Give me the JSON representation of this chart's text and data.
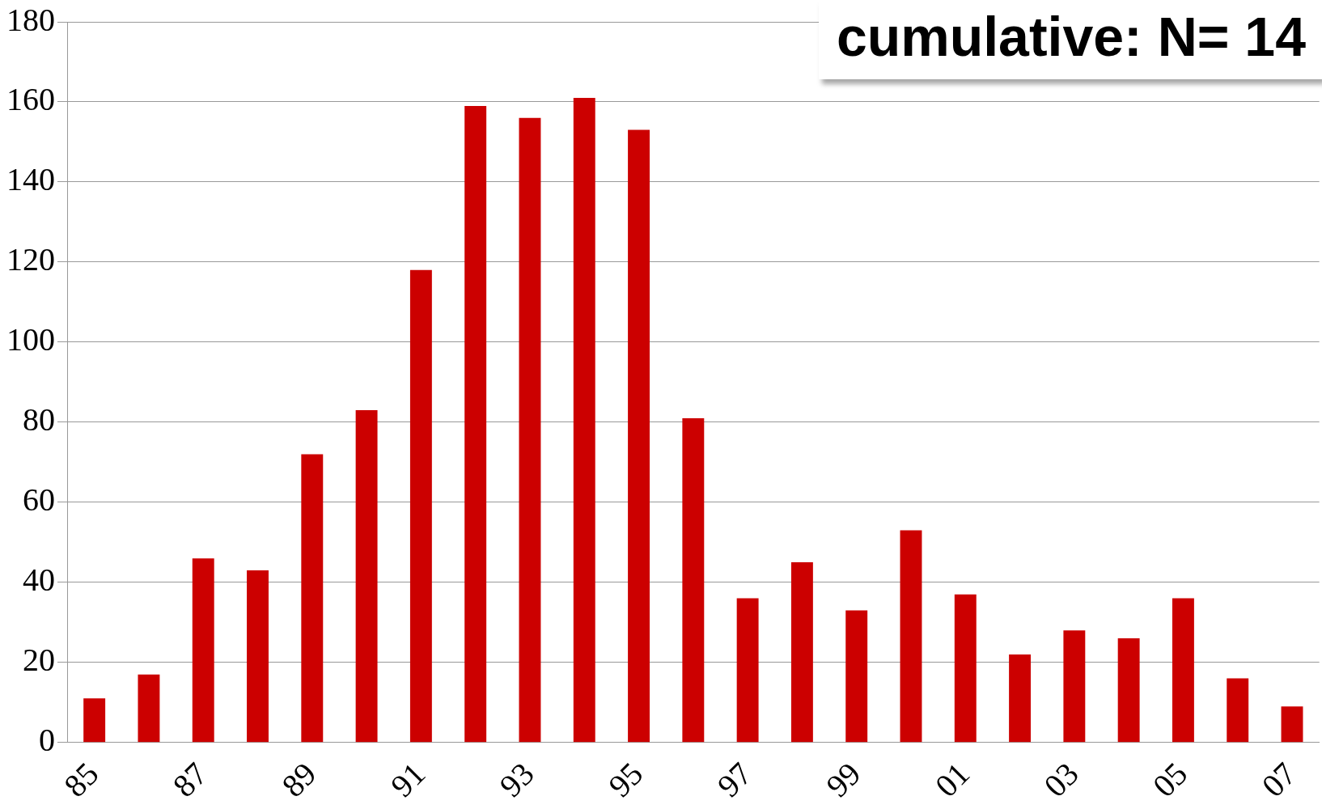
{
  "chart_data": {
    "type": "bar",
    "title": "cumulative: N= 14",
    "categories": [
      "85",
      null,
      "87",
      null,
      "89",
      null,
      "91",
      null,
      "93",
      null,
      "95",
      null,
      "97",
      null,
      "99",
      null,
      "01",
      null,
      "03",
      null,
      "05",
      null,
      "07"
    ],
    "values": [
      11,
      17,
      46,
      43,
      72,
      83,
      118,
      159,
      156,
      161,
      153,
      81,
      36,
      45,
      33,
      53,
      37,
      22,
      28,
      26,
      36,
      16,
      9
    ],
    "color": "#cc0000",
    "ylim": [
      0,
      180
    ],
    "yticks": [
      0,
      20,
      40,
      60,
      80,
      100,
      120,
      140,
      160,
      180
    ],
    "grid": "y",
    "legend": false
  }
}
